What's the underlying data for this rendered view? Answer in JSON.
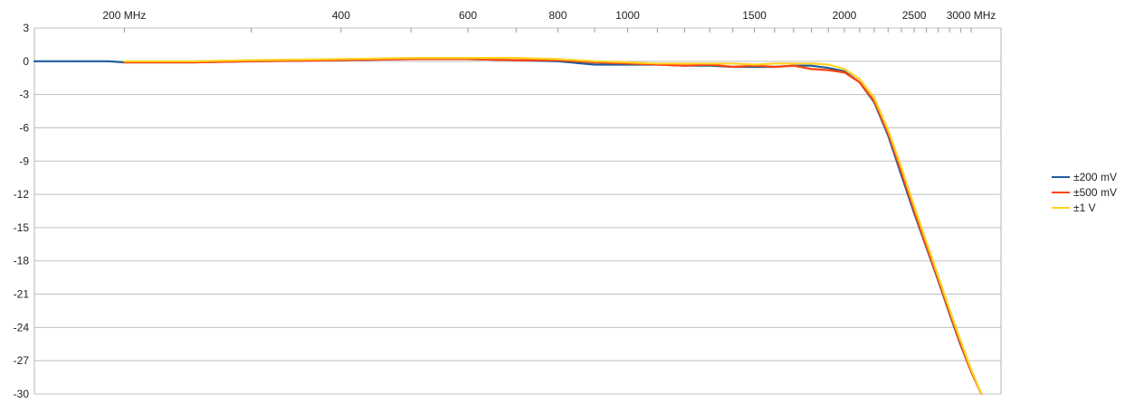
{
  "chart_data": {
    "type": "line",
    "title": "",
    "xlabel": "",
    "ylabel": "",
    "x_scale": "log",
    "xlim": [
      150,
      3300
    ],
    "ylim": [
      -30,
      3
    ],
    "y_ticks": [
      "3",
      "0",
      "-3",
      "-6",
      "-9",
      "-12",
      "-15",
      "-18",
      "-21",
      "-24",
      "-27",
      "-30"
    ],
    "x_tick_labels": [
      {
        "x": 200,
        "label": "200 MHz"
      },
      {
        "x": 400,
        "label": "400"
      },
      {
        "x": 600,
        "label": "600"
      },
      {
        "x": 800,
        "label": "800"
      },
      {
        "x": 1000,
        "label": "1000"
      },
      {
        "x": 1500,
        "label": "1500"
      },
      {
        "x": 2000,
        "label": "2000"
      },
      {
        "x": 2500,
        "label": "2500"
      },
      {
        "x": 3000,
        "label": "3000 MHz"
      }
    ],
    "grid": "horizontal",
    "legend_position": "right",
    "series": [
      {
        "name": "±200 mV",
        "color": "#1f5c99",
        "x": [
          150,
          170,
          190,
          200,
          250,
          300,
          400,
          500,
          600,
          700,
          800,
          900,
          1000,
          1100,
          1200,
          1300,
          1400,
          1500,
          1600,
          1700,
          1800,
          1900,
          2000,
          2100,
          2200,
          2300,
          2400,
          2500,
          2600,
          2700,
          2800,
          2900,
          3000,
          3100
        ],
        "y": [
          0,
          0,
          0,
          -0.1,
          -0.1,
          0,
          0.1,
          0.2,
          0.2,
          0.1,
          0,
          -0.3,
          -0.3,
          -0.3,
          -0.4,
          -0.4,
          -0.5,
          -0.5,
          -0.5,
          -0.4,
          -0.4,
          -0.6,
          -0.9,
          -1.9,
          -3.7,
          -6.7,
          -10.3,
          -13.7,
          -16.8,
          -19.8,
          -22.8,
          -25.6,
          -28.0,
          -30
        ]
      },
      {
        "name": "±500 mV",
        "color": "#ff420e",
        "x": [
          200,
          250,
          300,
          400,
          500,
          600,
          700,
          800,
          900,
          1000,
          1100,
          1200,
          1300,
          1400,
          1500,
          1600,
          1700,
          1800,
          1900,
          2000,
          2100,
          2200,
          2300,
          2400,
          2500,
          2600,
          2700,
          2800,
          2900,
          3000,
          3100
        ],
        "y": [
          -0.1,
          -0.1,
          0,
          0.1,
          0.2,
          0.2,
          0.1,
          0.1,
          -0.1,
          -0.2,
          -0.3,
          -0.4,
          -0.3,
          -0.5,
          -0.4,
          -0.5,
          -0.4,
          -0.7,
          -0.8,
          -1.0,
          -1.9,
          -3.6,
          -6.5,
          -10.0,
          -13.5,
          -16.7,
          -19.7,
          -22.7,
          -25.5,
          -28.0,
          -30
        ]
      },
      {
        "name": "±1 V",
        "color": "#ffd320",
        "x": [
          200,
          250,
          300,
          400,
          500,
          600,
          700,
          800,
          900,
          1000,
          1100,
          1200,
          1300,
          1400,
          1500,
          1600,
          1700,
          1800,
          1900,
          2000,
          2100,
          2200,
          2300,
          2400,
          2500,
          2600,
          2700,
          2800,
          2900,
          3000,
          3100
        ],
        "y": [
          0,
          0,
          0.1,
          0.2,
          0.3,
          0.3,
          0.3,
          0.2,
          0,
          -0.1,
          -0.2,
          -0.2,
          -0.2,
          -0.2,
          -0.3,
          -0.2,
          -0.2,
          -0.2,
          -0.3,
          -0.7,
          -1.6,
          -3.3,
          -6.2,
          -9.6,
          -13.1,
          -16.3,
          -19.4,
          -22.4,
          -25.2,
          -27.8,
          -30
        ]
      }
    ]
  }
}
